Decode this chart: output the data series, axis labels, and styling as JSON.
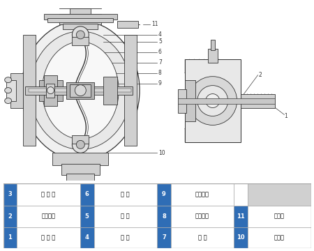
{
  "title": "",
  "bg_color": "#ffffff",
  "table_header_color": "#2f6db5",
  "table_text_color": "#000000",
  "table_header_text_color": "#ffffff",
  "table_border_color": "#999999",
  "table_bg_color": "#ffffff",
  "legend_items": [
    {
      "num": "1",
      "text": "进 气 口"
    },
    {
      "num": "2",
      "text": "配气阀体"
    },
    {
      "num": "3",
      "text": "配 气 阀"
    },
    {
      "num": "4",
      "text": "圆 球"
    },
    {
      "num": "5",
      "text": "球 座"
    },
    {
      "num": "6",
      "text": "隔 膜"
    },
    {
      "num": "7",
      "text": "连 杆"
    },
    {
      "num": "8",
      "text": "连杆铜套"
    },
    {
      "num": "9",
      "text": "中间支架"
    },
    {
      "num": "10",
      "text": "泵进口"
    },
    {
      "num": "11",
      "text": "排气口"
    }
  ],
  "line_color": "#333333",
  "diagram_area": [
    0.0,
    0.28,
    1.0,
    1.0
  ]
}
